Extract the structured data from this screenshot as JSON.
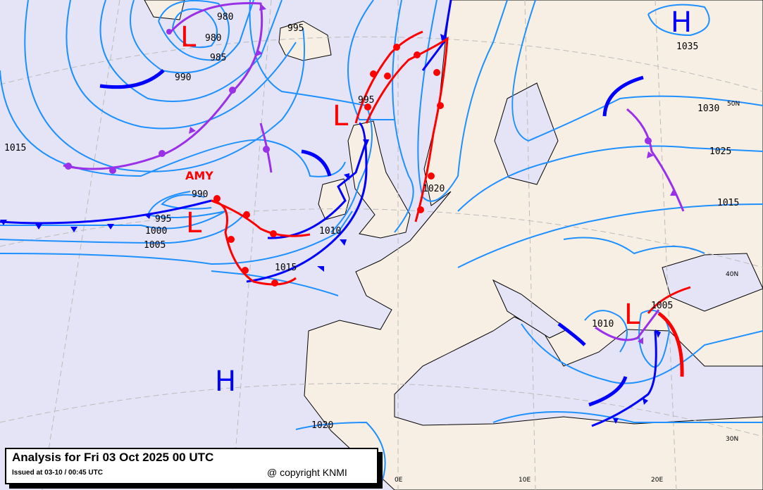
{
  "map": {
    "colors": {
      "sea": "#e4e4f6",
      "land": "#f8efe4",
      "isobar": "#1e90ff",
      "cold_front": "#0000ff",
      "warm_front": "#ff0000",
      "occluded_front": "#9a30e8",
      "low": "#ff0000",
      "high": "#0000ff"
    },
    "pressure_centers": [
      {
        "type": "L",
        "value": "980"
      },
      {
        "type": "L",
        "value": ""
      },
      {
        "type": "L",
        "value": "",
        "name": "AMY"
      },
      {
        "type": "H",
        "value": "1035"
      },
      {
        "type": "H",
        "value": ""
      },
      {
        "type": "L",
        "value": "1005"
      }
    ],
    "isobar_labels": [
      "980",
      "985",
      "990",
      "995",
      "995",
      "1015",
      "990",
      "995",
      "1000",
      "1005",
      "1010",
      "1015",
      "1020",
      "1025",
      "1030",
      "1015",
      "1010",
      "1020"
    ],
    "grid_labels": [
      "50N",
      "40N",
      "30N",
      "0E",
      "10E",
      "20E"
    ]
  },
  "infobox": {
    "title": "Analysis for Fri 03 Oct 2025 00 UTC",
    "issued": "Issued at 03-10 / 00:45 UTC",
    "copyright": "@ copyright KNMI"
  }
}
